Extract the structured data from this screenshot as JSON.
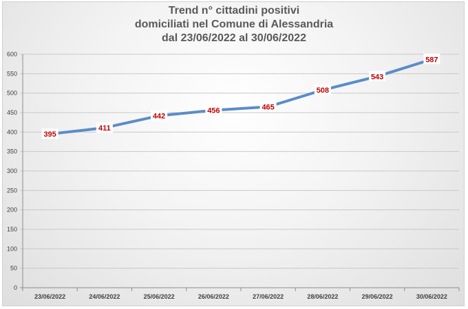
{
  "chart_data": {
    "type": "line",
    "title_lines": [
      "Trend n° cittadini positivi",
      "domiciliati nel Comune di Alessandria",
      "dal 23/06/2022 al 30/06/2022"
    ],
    "xlabel": "",
    "ylabel": "",
    "categories": [
      "23/06/2022",
      "24/06/2022",
      "25/06/2022",
      "26/06/2022",
      "27/06/2022",
      "28/06/2022",
      "29/06/2022",
      "30/06/2022"
    ],
    "series": [
      {
        "values": [
          395,
          411,
          442,
          456,
          465,
          508,
          543,
          587
        ]
      }
    ],
    "ylim": [
      0,
      600
    ],
    "yticks": [
      0,
      50,
      100,
      150,
      200,
      250,
      300,
      350,
      400,
      450,
      500,
      550,
      600
    ],
    "grid": true,
    "legend": "none",
    "colors": {
      "line": "#5b8cc8",
      "label_text": "#c00000",
      "grid": "#c8c8c8",
      "axis_text": "#404040",
      "title": "#595959"
    }
  }
}
